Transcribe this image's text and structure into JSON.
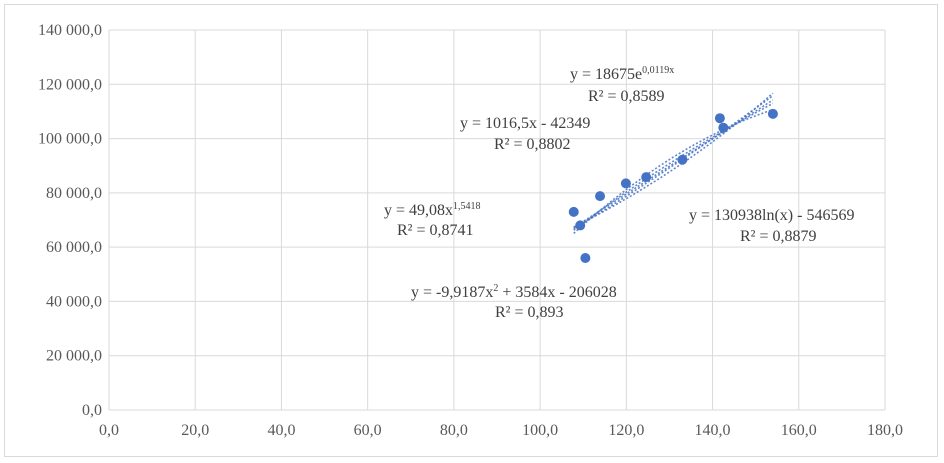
{
  "chart_data": {
    "type": "scatter",
    "title": "",
    "xlabel": "",
    "ylabel": "",
    "xlim": [
      0,
      180
    ],
    "ylim": [
      0,
      140000
    ],
    "x_ticks": [
      0,
      20,
      40,
      60,
      80,
      100,
      120,
      140,
      160,
      180
    ],
    "y_ticks": [
      0,
      20000,
      40000,
      60000,
      80000,
      100000,
      120000,
      140000
    ],
    "x_tick_labels": [
      "0,0",
      "20,0",
      "40,0",
      "60,0",
      "80,0",
      "100,0",
      "120,0",
      "140,0",
      "160,0",
      "180,0"
    ],
    "y_tick_labels": [
      "0,0",
      "20 000,0",
      "40 000,0",
      "60 000,0",
      "80 000,0",
      "100 000,0",
      "120 000,0",
      "140 000,0"
    ],
    "grid": true,
    "legend": "none",
    "colors": {
      "marker": "#4472c4",
      "trendline": "#4472c4",
      "grid": "#d9d9d9"
    },
    "series": [
      {
        "points": [
          {
            "x": 107.8,
            "y": 73000
          },
          {
            "x": 109.3,
            "y": 68000
          },
          {
            "x": 110.5,
            "y": 56000
          },
          {
            "x": 113.9,
            "y": 78800
          },
          {
            "x": 119.9,
            "y": 83500
          },
          {
            "x": 124.6,
            "y": 85800
          },
          {
            "x": 133.0,
            "y": 92200
          },
          {
            "x": 141.7,
            "y": 107500
          },
          {
            "x": 142.5,
            "y": 104000
          },
          {
            "x": 154.0,
            "y": 109100
          }
        ]
      }
    ],
    "trendlines": [
      {
        "kind": "linear",
        "a": 1016.5,
        "b": -42349
      },
      {
        "kind": "exponential",
        "a": 18675,
        "b": 0.0119
      },
      {
        "kind": "power",
        "a": 49.08,
        "b": 1.5418
      },
      {
        "kind": "logarithmic",
        "a": 130938,
        "b": -546569
      },
      {
        "kind": "polynomial",
        "a": -9.9187,
        "b": 3584,
        "c": -206028
      }
    ],
    "trend_x_range": [
      107.8,
      154.0
    ],
    "annotations": {
      "exp_line1_a": "y = 18675e",
      "exp_line1_sup": "0,0119x",
      "exp_line2": "R² = 0,8589",
      "lin_line1": "y = 1016,5x - 42349",
      "lin_line2": "R² = 0,8802",
      "pow_line1_a": "y = 49,08x",
      "pow_line1_sup": "1,5418",
      "pow_line2": "R² = 0,8741",
      "log_line1": "y = 130938ln(x) - 546569",
      "log_line2": "R² = 0,8879",
      "poly_line1_a": "y = -9,9187x",
      "poly_line1_sup": "2",
      "poly_line1_b": " + 3584x - 206028",
      "poly_line2": "R² = 0,893"
    }
  }
}
